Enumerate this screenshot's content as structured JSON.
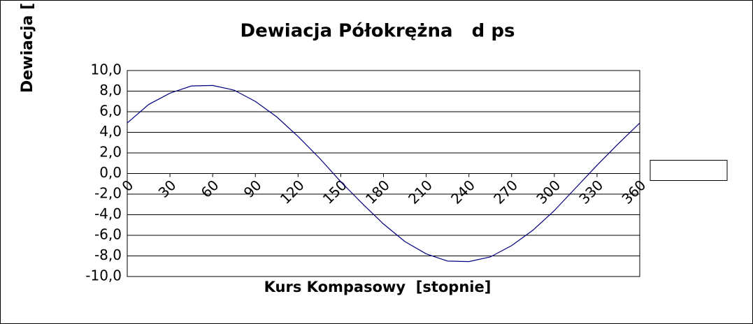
{
  "chart_data": {
    "type": "line",
    "title": "Dewiacja Półokrężna   d ps",
    "x_label": "Kurs Kompasowy  [stopnie]",
    "y_label": "Dewiacja [",
    "x": [
      0,
      15,
      30,
      45,
      60,
      75,
      90,
      105,
      120,
      135,
      150,
      165,
      180,
      195,
      210,
      225,
      240,
      255,
      270,
      285,
      300,
      315,
      330,
      345,
      360
    ],
    "values": [
      4.9,
      6.7,
      7.8,
      8.5,
      8.55,
      8.1,
      7.0,
      5.5,
      3.6,
      1.5,
      -0.8,
      -2.9,
      -4.9,
      -6.6,
      -7.8,
      -8.5,
      -8.55,
      -8.1,
      -7.0,
      -5.5,
      -3.6,
      -1.4,
      0.8,
      2.9,
      4.9
    ],
    "color": "#000080",
    "xlim": [
      0,
      360
    ],
    "xticks": [
      0,
      30,
      60,
      90,
      120,
      150,
      180,
      210,
      240,
      270,
      300,
      330,
      360
    ],
    "ylim": [
      -10,
      10
    ],
    "yticks": [
      {
        "value": -10,
        "label": "-10,0"
      },
      {
        "value": -8,
        "label": "-8,0"
      },
      {
        "value": -6,
        "label": "-6,0"
      },
      {
        "value": -4,
        "label": "-4,0"
      },
      {
        "value": -2,
        "label": "-2,0"
      },
      {
        "value": 0,
        "label": "0,0"
      },
      {
        "value": 2,
        "label": "2,0"
      },
      {
        "value": 4,
        "label": "4,0"
      },
      {
        "value": 6,
        "label": "6,0"
      },
      {
        "value": 8,
        "label": "8,0"
      },
      {
        "value": 10,
        "label": "10,0"
      }
    ],
    "grid": true
  }
}
